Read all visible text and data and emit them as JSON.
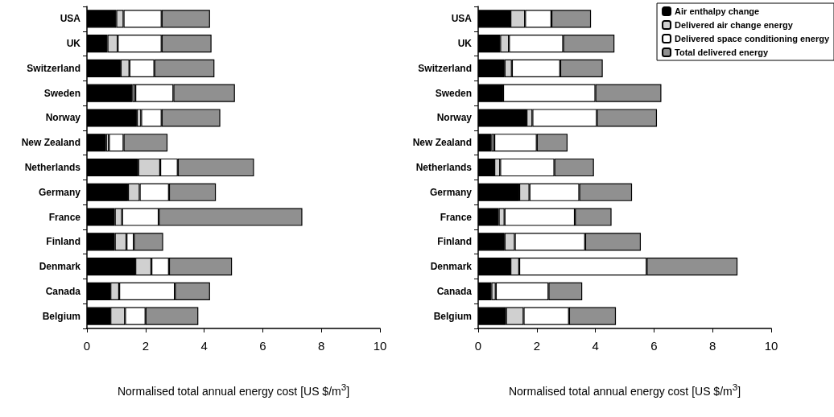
{
  "chart_data": [
    {
      "type": "bar",
      "orientation": "horizontal",
      "stacked": true,
      "categories": [
        "USA",
        "UK",
        "Switzerland",
        "Sweden",
        "Norway",
        "New Zealand",
        "Netherlands",
        "Germany",
        "France",
        "Finland",
        "Denmark",
        "Canada",
        "Belgium"
      ],
      "xlabel": "Normalised total annual energy cost [US $/m$^{3}$]",
      "xlim": [
        0,
        10
      ],
      "xticks": [
        0,
        2,
        4,
        6,
        8,
        10
      ],
      "grid": false,
      "legend": false,
      "series": [
        {
          "color": "#000000",
          "values": [
            1.0,
            0.7,
            1.15,
            1.55,
            1.7,
            0.65,
            1.75,
            1.4,
            0.95,
            0.95,
            1.65,
            0.8,
            0.8
          ]
        },
        {
          "color": "#d0d0d0",
          "values": [
            0.25,
            0.35,
            0.3,
            0.1,
            0.15,
            0.1,
            0.75,
            0.4,
            0.25,
            0.4,
            0.55,
            0.3,
            0.5
          ]
        },
        {
          "color": "#ffffff",
          "values": [
            1.3,
            1.5,
            0.85,
            1.3,
            0.7,
            0.5,
            0.6,
            1.0,
            1.25,
            0.25,
            0.6,
            1.9,
            0.7
          ]
        },
        {
          "color": "#909090",
          "values": [
            1.65,
            1.7,
            2.05,
            2.1,
            2.0,
            1.5,
            2.6,
            1.6,
            4.9,
            1.0,
            2.15,
            1.2,
            1.8
          ]
        }
      ]
    },
    {
      "type": "bar",
      "orientation": "horizontal",
      "stacked": true,
      "categories": [
        "USA",
        "UK",
        "Switzerland",
        "Sweden",
        "Norway",
        "New Zealand",
        "Netherlands",
        "Germany",
        "France",
        "Finland",
        "Denmark",
        "Canada",
        "Belgium"
      ],
      "xlabel": "Normalised total annual energy cost [US $/m$^{3}$]",
      "xlim": [
        0,
        10
      ],
      "xticks": [
        0,
        2,
        4,
        6,
        8,
        10
      ],
      "grid": false,
      "legend": "top right",
      "series": [
        {
          "name": "Air enthalpy change",
          "color": "#000000",
          "values": [
            1.1,
            0.75,
            0.9,
            0.85,
            1.65,
            0.45,
            0.55,
            1.4,
            0.7,
            0.9,
            1.1,
            0.45,
            0.95
          ]
        },
        {
          "name": "Delivered air change energy",
          "color": "#d0d0d0",
          "values": [
            0.5,
            0.3,
            0.25,
            null,
            0.2,
            0.1,
            0.2,
            0.35,
            0.2,
            0.35,
            0.3,
            0.15,
            0.6
          ]
        },
        {
          "name": "Delivered space conditioning energy",
          "color": "#ffffff",
          "values": [
            0.9,
            1.85,
            1.65,
            3.15,
            2.2,
            1.45,
            1.85,
            1.7,
            2.4,
            2.4,
            4.35,
            1.8,
            1.55
          ]
        },
        {
          "name": "Total delivered energy",
          "color": "#909090",
          "values": [
            1.35,
            1.75,
            1.45,
            2.25,
            2.05,
            1.05,
            1.35,
            1.8,
            1.25,
            1.9,
            3.1,
            1.15,
            1.6
          ]
        }
      ]
    }
  ]
}
